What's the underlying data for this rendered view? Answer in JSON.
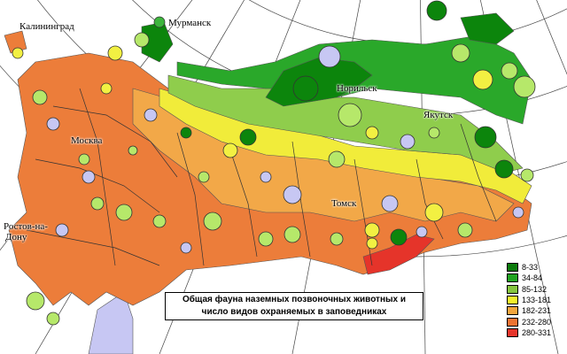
{
  "map": {
    "title_line1": "Общая фауна наземных позвоночных животных и",
    "title_line2": "число видов охраняемых в заповедниках",
    "cities": {
      "kaliningrad": "Калининград",
      "murmansk": "Мурманск",
      "norilsk": "Норильск",
      "yakutsk": "Якутск",
      "moscow": "Москва",
      "tomsk": "Томск",
      "rostov_line1": "Ростов-на-",
      "rostov_line2": "Дону"
    },
    "legend": [
      {
        "label": "8-33",
        "color": "#0b7a0b"
      },
      {
        "label": "34-84",
        "color": "#21a321"
      },
      {
        "label": "85-132",
        "color": "#86c540"
      },
      {
        "label": "133-181",
        "color": "#f4f02c"
      },
      {
        "label": "182-231",
        "color": "#f3a63e"
      },
      {
        "label": "232-280",
        "color": "#ec7332"
      },
      {
        "label": "280-331",
        "color": "#e5342a"
      }
    ],
    "marker_colors": {
      "light_green": "#b6e86a",
      "lavender": "#c7c7f3",
      "yellow": "#f2f042",
      "dark_green": "#0c850c",
      "mid_green": "#3db53d"
    },
    "zone_colors": {
      "dark_green": "#0c850c",
      "mid_green": "#2aa82a",
      "light_green": "#8fcd4c",
      "yellow": "#f1ec3a",
      "orange": "#f2a848",
      "dark_orange": "#ec7d3a",
      "red": "#e5342a",
      "sea": "#c7c7f3"
    }
  }
}
